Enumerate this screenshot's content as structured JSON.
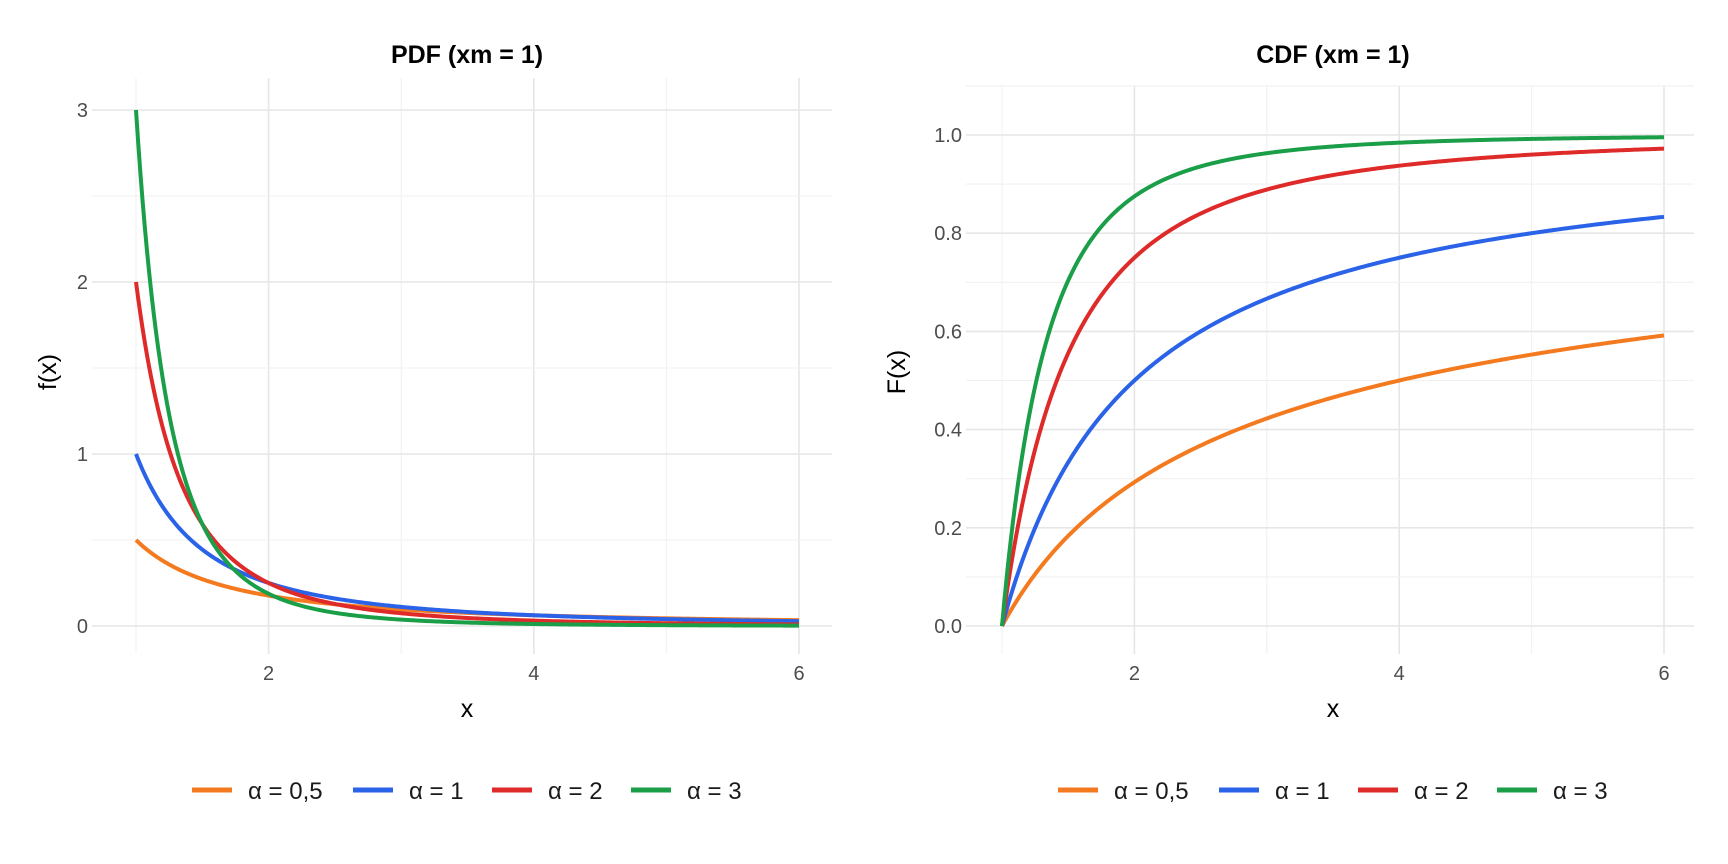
{
  "chart_data": [
    {
      "type": "line",
      "title": "PDF (xm = 1)",
      "xlabel": "x",
      "ylabel": "f(x)",
      "xlim": [
        1,
        6
      ],
      "ylim": [
        0,
        3
      ],
      "x_ticks": [
        2,
        4,
        6
      ],
      "y_ticks": [
        0,
        1,
        2,
        3
      ],
      "y_tick_labels": [
        "0",
        "1",
        "2",
        "3"
      ],
      "function": "pdf",
      "xm": 1,
      "grid": true,
      "legend_position": "bottom",
      "series": [
        {
          "name": "α = 0,5",
          "alpha": 0.5,
          "color": "#f47a20",
          "x": [
            1,
            1.5,
            2,
            3,
            4,
            5,
            6
          ],
          "values": [
            0.5,
            0.272,
            0.177,
            0.096,
            0.0625,
            0.0447,
            0.034
          ]
        },
        {
          "name": "α = 1",
          "alpha": 1,
          "color": "#2a62e8",
          "x": [
            1,
            1.5,
            2,
            3,
            4,
            5,
            6
          ],
          "values": [
            1.0,
            0.444,
            0.25,
            0.111,
            0.0625,
            0.04,
            0.028
          ]
        },
        {
          "name": "α = 2",
          "alpha": 2,
          "color": "#df2a2a",
          "x": [
            1,
            1.5,
            2,
            3,
            4,
            5,
            6
          ],
          "values": [
            2.0,
            0.593,
            0.25,
            0.074,
            0.031,
            0.016,
            0.009
          ]
        },
        {
          "name": "α = 3",
          "alpha": 3,
          "color": "#1b9e48",
          "x": [
            1,
            1.5,
            2,
            3,
            4,
            5,
            6
          ],
          "values": [
            3.0,
            0.593,
            0.1875,
            0.037,
            0.0117,
            0.0048,
            0.0023
          ]
        }
      ]
    },
    {
      "type": "line",
      "title": "CDF (xm = 1)",
      "xlabel": "x",
      "ylabel": "F(x)",
      "xlim": [
        1,
        6
      ],
      "ylim": [
        0,
        1
      ],
      "x_ticks": [
        2,
        4,
        6
      ],
      "y_ticks": [
        0,
        0.2,
        0.4,
        0.6,
        0.8,
        1.0
      ],
      "y_tick_labels": [
        "0.0",
        "0.2",
        "0.4",
        "0.6",
        "0.8",
        "1.0"
      ],
      "function": "cdf",
      "xm": 1,
      "grid": true,
      "legend_position": "bottom",
      "series": [
        {
          "name": "α = 0,5",
          "alpha": 0.5,
          "color": "#f47a20",
          "x": [
            1,
            1.5,
            2,
            3,
            4,
            5,
            6
          ],
          "values": [
            0.0,
            0.184,
            0.293,
            0.423,
            0.5,
            0.553,
            0.592
          ]
        },
        {
          "name": "α = 1",
          "alpha": 1,
          "color": "#2a62e8",
          "x": [
            1,
            1.5,
            2,
            3,
            4,
            5,
            6
          ],
          "values": [
            0.0,
            0.333,
            0.5,
            0.667,
            0.75,
            0.8,
            0.833
          ]
        },
        {
          "name": "α = 2",
          "alpha": 2,
          "color": "#df2a2a",
          "x": [
            1,
            1.5,
            2,
            3,
            4,
            5,
            6
          ],
          "values": [
            0.0,
            0.556,
            0.75,
            0.889,
            0.9375,
            0.96,
            0.972
          ]
        },
        {
          "name": "α = 3",
          "alpha": 3,
          "color": "#1b9e48",
          "x": [
            1,
            1.5,
            2,
            3,
            4,
            5,
            6
          ],
          "values": [
            0.0,
            0.704,
            0.875,
            0.963,
            0.984,
            0.992,
            0.995
          ]
        }
      ]
    }
  ]
}
